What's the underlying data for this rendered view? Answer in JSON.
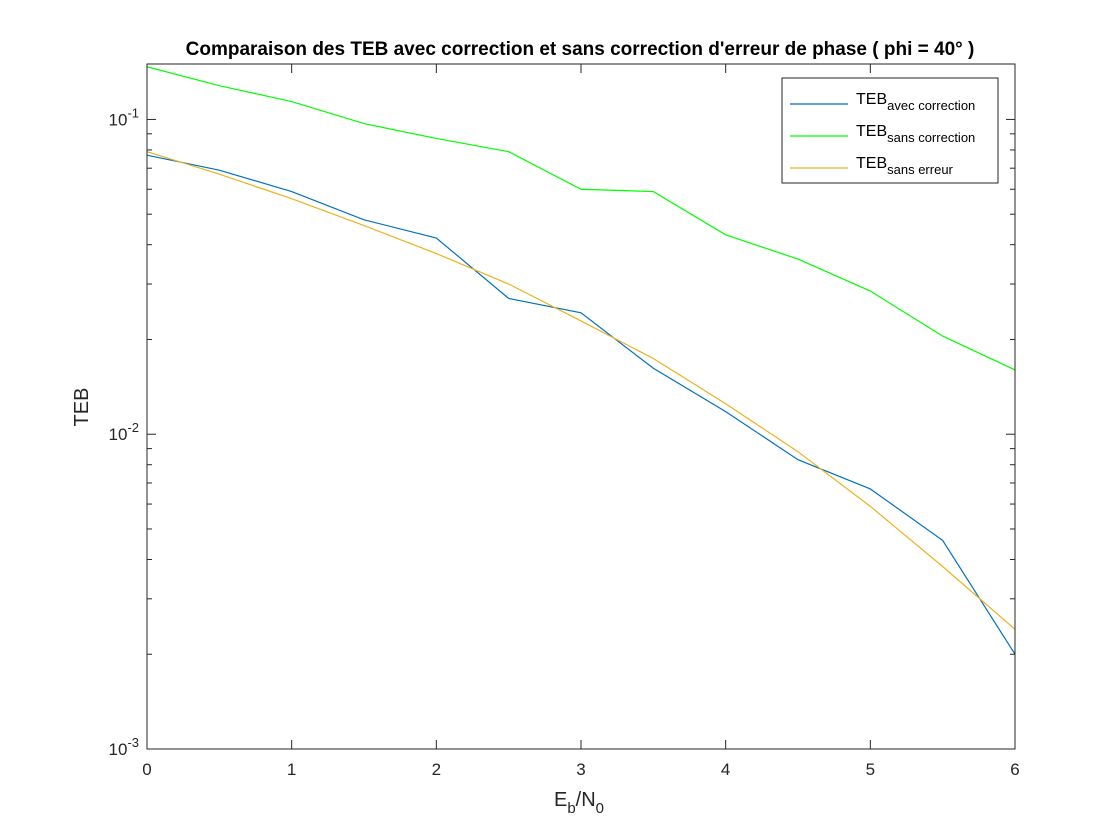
{
  "chart_data": {
    "type": "line",
    "title": "Comparaison des TEB avec correction et sans correction d'erreur de phase ( phi = 40° )",
    "xlabel": {
      "main": "E",
      "sub1": "b",
      "mid": "/N",
      "sub2": "0"
    },
    "ylabel": "TEB",
    "x": [
      0,
      0.5,
      1,
      1.5,
      2,
      2.5,
      3,
      3.5,
      4,
      4.5,
      5,
      5.5,
      6
    ],
    "xlim": [
      0,
      6
    ],
    "ylim": [
      0.001,
      0.15
    ],
    "yscale": "log",
    "xticks": [
      0,
      1,
      2,
      3,
      4,
      5,
      6
    ],
    "xtick_labels": [
      "0",
      "1",
      "2",
      "3",
      "4",
      "5",
      "6"
    ],
    "yticks": [
      0.001,
      0.01,
      0.1
    ],
    "ytick_labels": [
      {
        "base": "10",
        "exp": "-3"
      },
      {
        "base": "10",
        "exp": "-2"
      },
      {
        "base": "10",
        "exp": "-1"
      }
    ],
    "grid": false,
    "legend_position": "top-right",
    "series": [
      {
        "name": "TEB",
        "sub": "avec correction",
        "color": "#0072BD",
        "values": [
          0.077,
          0.069,
          0.059,
          0.048,
          0.042,
          0.027,
          0.0243,
          0.0162,
          0.0118,
          0.0083,
          0.0067,
          0.0046,
          0.002
        ]
      },
      {
        "name": "TEB",
        "sub": "sans correction",
        "color": "#00FF00",
        "values": [
          0.147,
          0.128,
          0.114,
          0.097,
          0.087,
          0.079,
          0.06,
          0.059,
          0.043,
          0.036,
          0.0285,
          0.0205,
          0.016
        ]
      },
      {
        "name": "TEB",
        "sub": "sans erreur",
        "color": "#EDB120",
        "values": [
          0.079,
          0.067,
          0.056,
          0.046,
          0.0375,
          0.03,
          0.0229,
          0.0174,
          0.0125,
          0.0088,
          0.0059,
          0.0038,
          0.0024
        ]
      }
    ]
  }
}
